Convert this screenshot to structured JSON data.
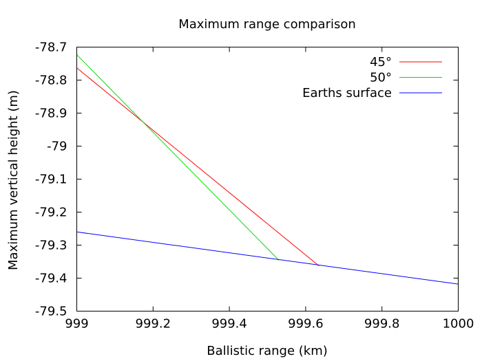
{
  "chart_data": {
    "type": "line",
    "title": "Maximum range comparison",
    "xlabel": "Ballistic range (km)",
    "ylabel": "Maximum vertical height (m)",
    "xlim": [
      999,
      1000
    ],
    "ylim": [
      -79.5,
      -78.7
    ],
    "xticks": [
      {
        "v": 999,
        "label": "999"
      },
      {
        "v": 999.2,
        "label": "999.2"
      },
      {
        "v": 999.4,
        "label": "999.4"
      },
      {
        "v": 999.6,
        "label": "999.6"
      },
      {
        "v": 999.8,
        "label": "999.8"
      },
      {
        "v": 1000,
        "label": "1000"
      }
    ],
    "yticks": [
      {
        "v": -78.7,
        "label": "-78.7"
      },
      {
        "v": -78.8,
        "label": "-78.8"
      },
      {
        "v": -78.9,
        "label": "-78.9"
      },
      {
        "v": -79.0,
        "label": "-79"
      },
      {
        "v": -79.1,
        "label": "-79.1"
      },
      {
        "v": -79.2,
        "label": "-79.2"
      },
      {
        "v": -79.3,
        "label": "-79.3"
      },
      {
        "v": -79.4,
        "label": "-79.4"
      },
      {
        "v": -79.5,
        "label": "-79.5"
      }
    ],
    "grid": false,
    "legend_position": "top-right",
    "series": [
      {
        "name": "45°",
        "color": "#ff0000",
        "x": [
          999.0,
          999.635
        ],
        "y": [
          -78.763,
          -79.363
        ]
      },
      {
        "name": "50°",
        "color": "#00dd00",
        "x": [
          999.0,
          999.53
        ],
        "y": [
          -78.723,
          -79.346
        ]
      },
      {
        "name": "Earths surface",
        "color": "#0000ff",
        "x": [
          999.0,
          1000.0
        ],
        "y": [
          -79.26,
          -79.418
        ]
      }
    ]
  }
}
